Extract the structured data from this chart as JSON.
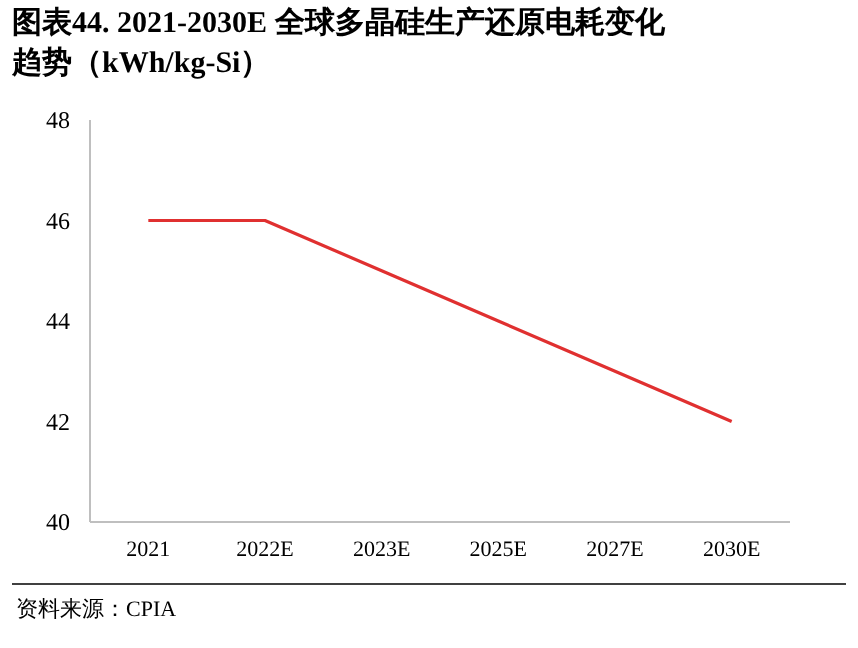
{
  "chart_data": {
    "type": "line",
    "title": "图表44. 2021-2030E 全球多晶硅生产还原电耗变化趋势（kWh/kg-Si）",
    "categories": [
      "2021",
      "2022E",
      "2023E",
      "2025E",
      "2027E",
      "2030E"
    ],
    "values": [
      46,
      46,
      45,
      44,
      43,
      42
    ],
    "color": "#e03030",
    "ylim": [
      40,
      48
    ],
    "yticks": [
      40,
      42,
      44,
      46,
      48
    ],
    "annotations": [
      "资料来源：CPIA"
    ]
  }
}
